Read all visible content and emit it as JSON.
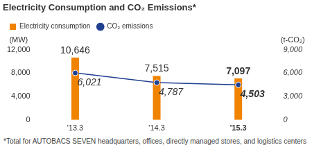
{
  "chart_data": {
    "type": "bar",
    "title": "Electricity Consumption and CO₂ Emissions*",
    "categories": [
      "'13.3",
      "'14.3",
      "'15.3"
    ],
    "y_label": "(MW)",
    "y2_label": "(t-CO₂)",
    "series": [
      {
        "name": "Electricity consumption",
        "type": "bar",
        "color": "#f08300",
        "values": [
          10646,
          7515,
          7097
        ],
        "value_labels": [
          "10,646",
          "7,515",
          "7,097"
        ]
      },
      {
        "name": "CO₂ emissions",
        "type": "line",
        "color": "#1f3f8f",
        "marker": "circle",
        "axis": "y2",
        "values": [
          6021,
          4787,
          4503
        ],
        "value_labels": [
          "6,021",
          "4,787",
          "4,503"
        ]
      }
    ],
    "ylim": [
      0,
      12000
    ],
    "yticks": [
      0,
      {
        "value": 4000,
        "label": "4,000"
      },
      {
        "value": 8000,
        "label": "8,000"
      },
      {
        "value": 12000,
        "label": "12,000"
      }
    ],
    "y2lim": [
      0,
      9000
    ],
    "y2ticks": [
      0,
      {
        "value": 3000,
        "label": "3,000"
      },
      {
        "value": 6000,
        "label": "6,000"
      },
      {
        "value": 9000,
        "label": "9,000"
      }
    ],
    "grid": false,
    "legend": "top-left",
    "data_labels": true,
    "annotations": [
      "*Total for AUTOBACS SEVEN headquarters, offices, directly managed stores, and logistics centers"
    ]
  }
}
